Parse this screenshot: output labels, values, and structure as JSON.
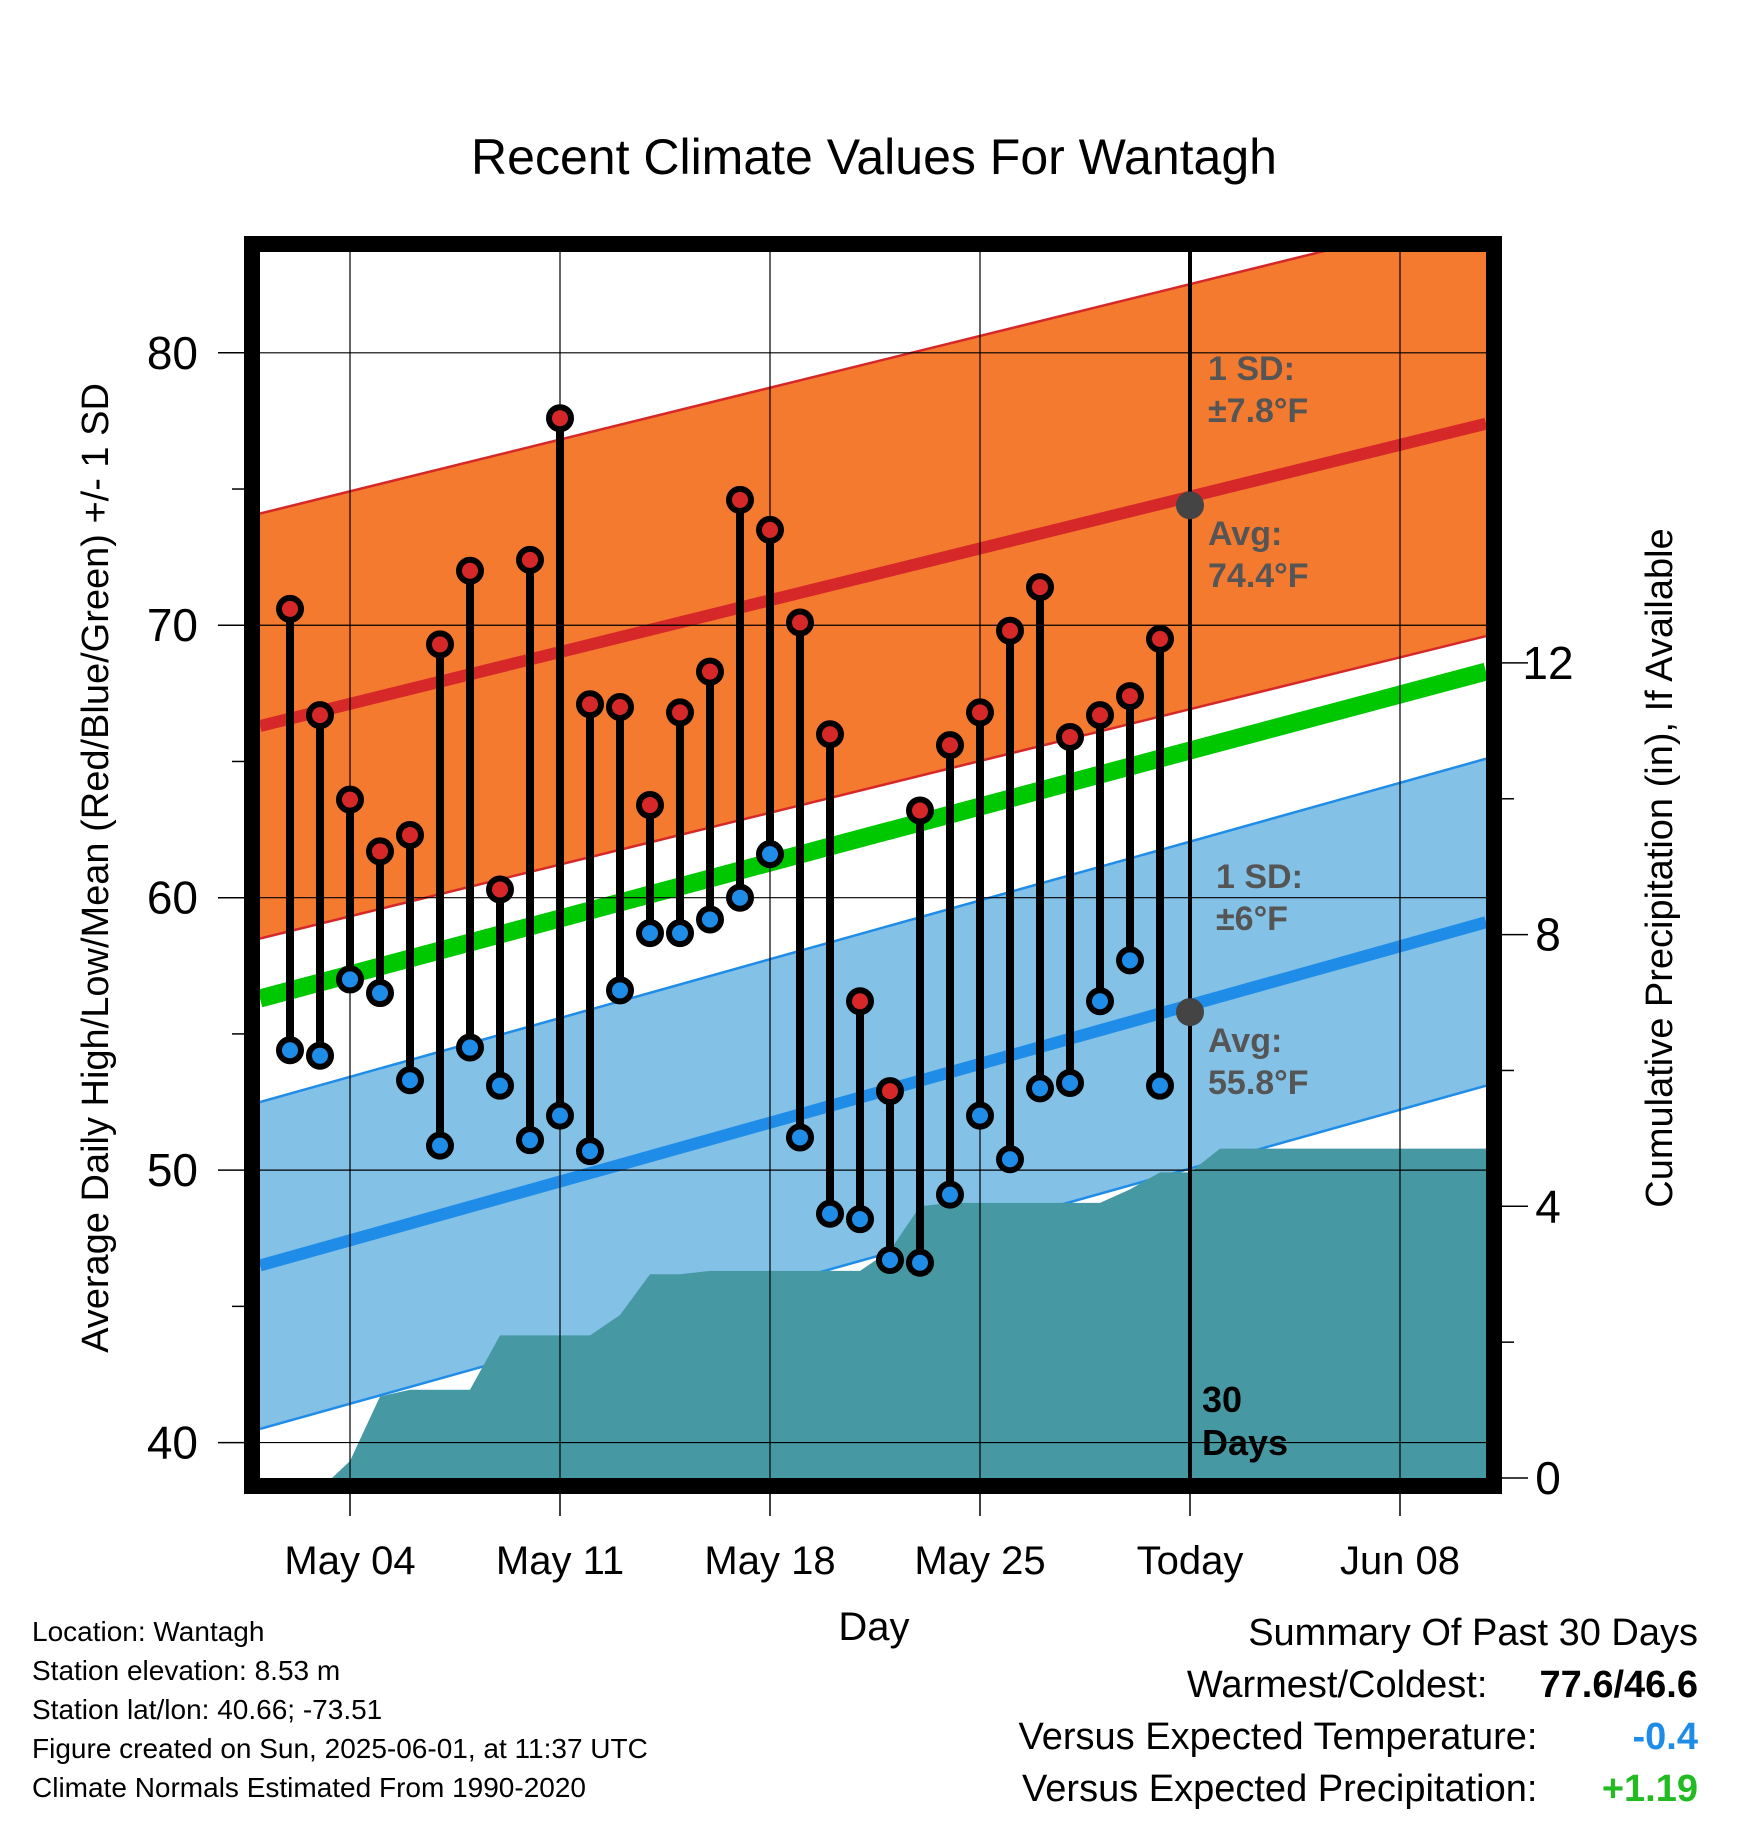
{
  "chart_data": {
    "type": "line",
    "title": "Recent Climate Values For Wantagh",
    "xlabel": "Day",
    "ylabel_left": "Average Daily High/Low/Mean (Red/Blue/Green) +/- 1 SD",
    "ylabel_right": "Cumulative Precipitation (in), If Available",
    "ylim": [
      38.7,
      83.7
    ],
    "y_ticks": [
      40,
      50,
      60,
      70,
      80
    ],
    "y_tick_labels": [
      "40",
      "50",
      "60",
      "70",
      "80"
    ],
    "y2lim": [
      0,
      18.05
    ],
    "y2_ticks": [
      0,
      4,
      8,
      12
    ],
    "y2_tick_labels": [
      "0",
      "4",
      "8",
      "12"
    ],
    "x_days": [
      "May 01",
      "Jun 10"
    ],
    "x_ticks": [
      {
        "day": 4,
        "label": "May 04"
      },
      {
        "day": 11,
        "label": "May 11"
      },
      {
        "day": 18,
        "label": "May 18"
      },
      {
        "day": 25,
        "label": "May 25"
      },
      {
        "day": 32,
        "label": "Today"
      },
      {
        "day": 39,
        "label": "Jun 08"
      }
    ],
    "today_day": 32,
    "grid": true,
    "normal_high": {
      "start": 66.3,
      "end": 77.4
    },
    "normal_high_sd": 7.8,
    "normal_low": {
      "start": 46.5,
      "end": 59.1
    },
    "normal_low_sd": 6.0,
    "normal_mean": {
      "start": 56.3,
      "end": 68.3
    },
    "days": [
      2,
      3,
      4,
      5,
      6,
      7,
      8,
      9,
      10,
      11,
      12,
      13,
      14,
      15,
      16,
      17,
      18,
      19,
      20,
      21,
      22,
      23,
      24,
      25,
      26,
      27,
      28,
      29,
      30,
      31
    ],
    "highs": [
      70.6,
      66.7,
      63.6,
      61.7,
      62.3,
      69.3,
      72.0,
      60.3,
      72.4,
      77.6,
      67.1,
      67.0,
      63.4,
      66.8,
      68.3,
      74.6,
      73.5,
      70.1,
      66.0,
      56.2,
      52.9,
      63.2,
      65.6,
      66.8,
      69.8,
      71.4,
      65.9,
      66.7,
      67.4,
      69.5
    ],
    "lows": [
      54.4,
      54.2,
      57.0,
      56.5,
      53.3,
      50.9,
      54.5,
      53.1,
      51.1,
      52.0,
      50.7,
      56.6,
      58.7,
      58.7,
      59.2,
      60.0,
      61.6,
      51.2,
      48.4,
      48.2,
      46.7,
      46.6,
      49.1,
      52.0,
      50.4,
      53.0,
      53.2,
      56.2,
      57.7,
      53.1
    ],
    "precip_cumulative": [
      [
        1,
        0
      ],
      [
        3.4,
        0
      ],
      [
        4.0,
        0.25
      ],
      [
        5.0,
        1.2
      ],
      [
        6.0,
        1.3
      ],
      [
        7.0,
        1.3
      ],
      [
        8.0,
        1.3
      ],
      [
        9.0,
        2.1
      ],
      [
        12.0,
        2.1
      ],
      [
        13.0,
        2.4
      ],
      [
        14.0,
        3.0
      ],
      [
        15.0,
        3.0
      ],
      [
        16.0,
        3.05
      ],
      [
        17.0,
        3.05
      ],
      [
        21.0,
        3.05
      ],
      [
        22.0,
        3.35
      ],
      [
        23.0,
        4.0
      ],
      [
        24.0,
        4.05
      ],
      [
        25.0,
        4.05
      ],
      [
        29.0,
        4.05
      ],
      [
        30.0,
        4.25
      ],
      [
        31.0,
        4.5
      ],
      [
        32.0,
        4.5
      ],
      [
        33.0,
        4.85
      ],
      [
        42.0,
        4.85
      ]
    ],
    "annotations": {
      "high_sd_line1": "1 SD:",
      "high_sd_line2": "±7.8°F",
      "high_avg_line1": "Avg:",
      "high_avg_line2": "74.4°F",
      "high_avg_value": 74.4,
      "low_sd_line1": "1 SD:",
      "low_sd_line2": "±6°F",
      "low_avg_line1": "Avg:",
      "low_avg_line2": "55.8°F",
      "low_avg_value": 55.8,
      "days_line1": "30",
      "days_line2": "Days"
    },
    "colors": {
      "high_band": "#f47a30",
      "high_band_edge": "#d62828",
      "high_line": "#d62828",
      "low_band": "#84c1e7",
      "low_band_edge": "#1f8de8",
      "low_line": "#1f8de8",
      "mean_line": "#00c800",
      "precip": "#4699a3",
      "high_marker": "#d62828",
      "low_marker": "#1f8de8",
      "annotation": "#555555",
      "avg_dot": "#444444"
    }
  },
  "info": {
    "location": "Location: Wantagh",
    "elevation": "Station elevation: 8.53 m",
    "latlon": "Station lat/lon: 40.66; -73.51",
    "created": "Figure created on Sun, 2025-06-01, at 11:37 UTC",
    "normals": "Climate Normals Estimated From 1990-2020"
  },
  "summary": {
    "title": "Summary Of Past 30 Days",
    "warmest_coldest_label": "Warmest/Coldest:",
    "warmest_coldest_value": "77.6/46.6",
    "temp_label": "Versus Expected Temperature:",
    "temp_value": "-0.4",
    "precip_label": "Versus Expected Precipitation:",
    "precip_value": "+1.19",
    "temp_color": "#1f8de8",
    "precip_color": "#22bb22"
  }
}
